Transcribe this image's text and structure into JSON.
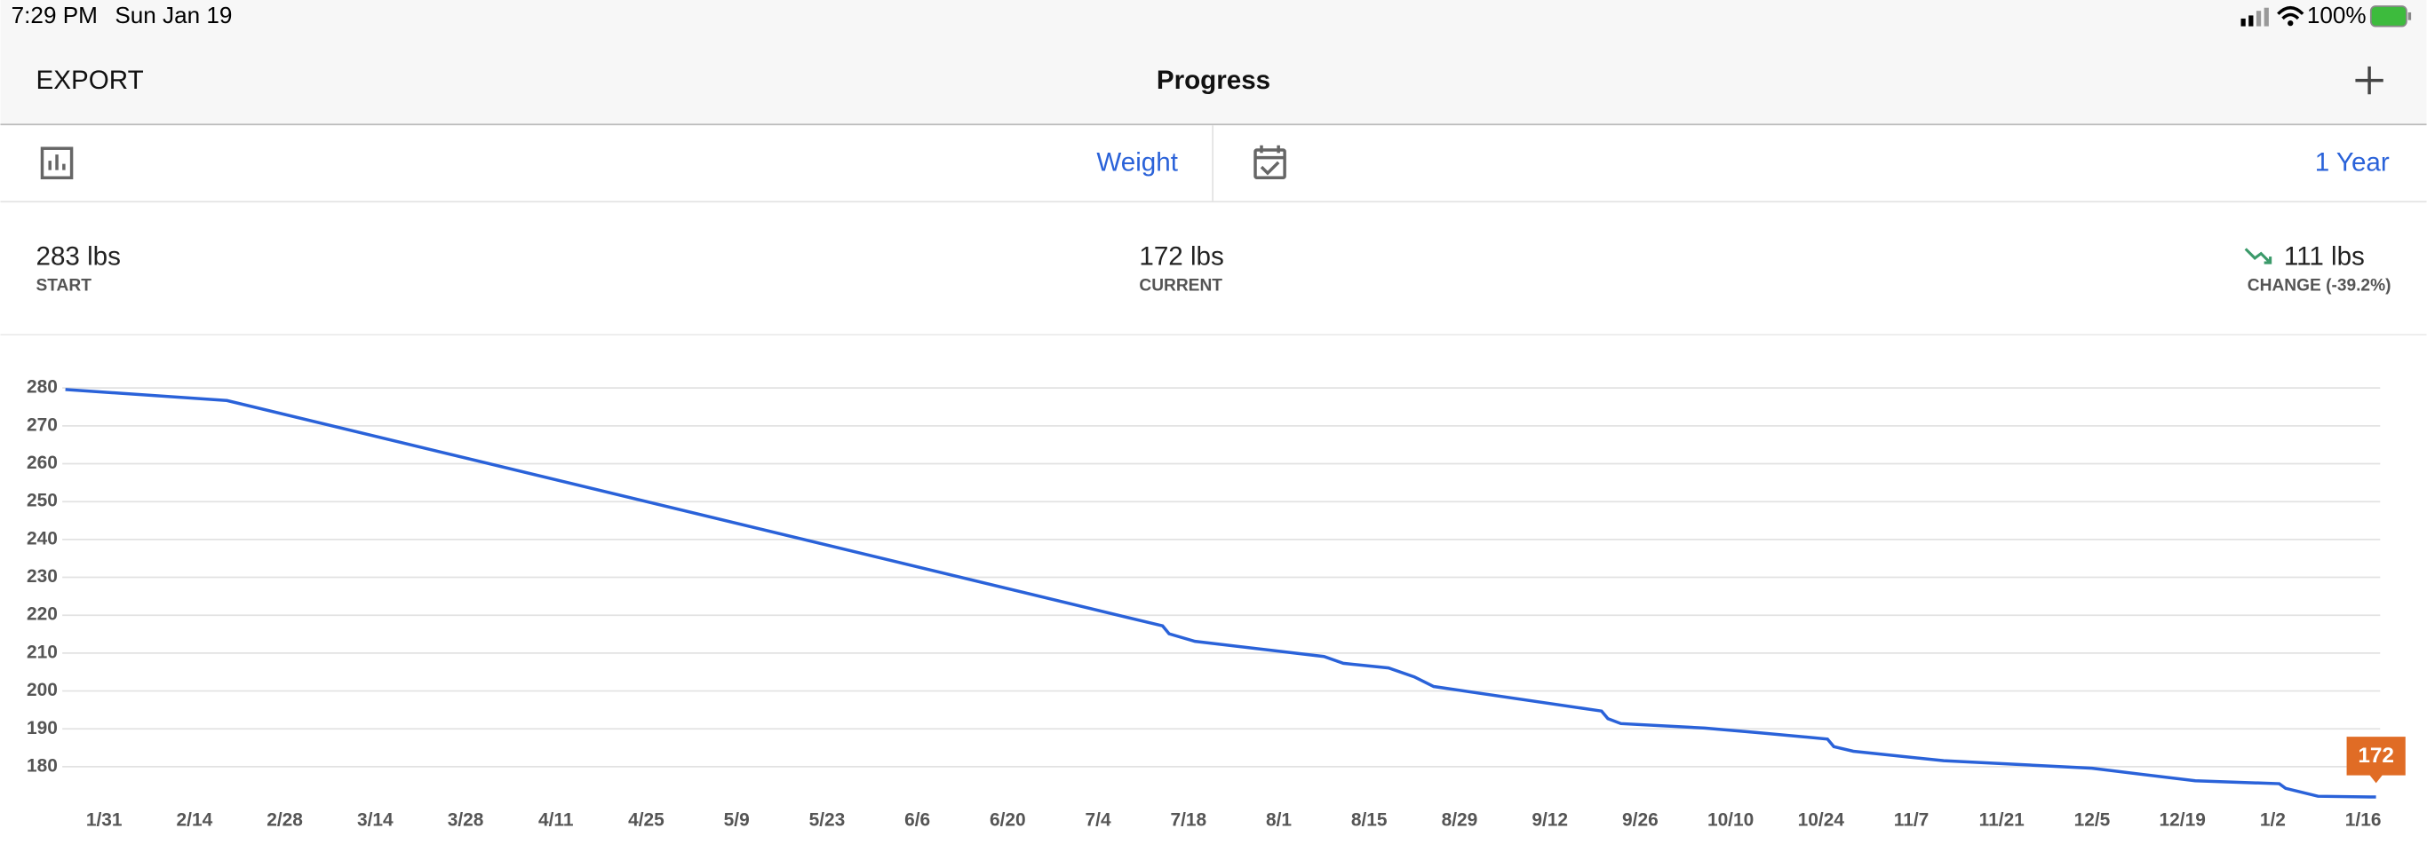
{
  "status_bar": {
    "time": "7:29 PM",
    "date": "Sun Jan 19",
    "battery": "100%"
  },
  "nav": {
    "left": "EXPORT",
    "title": "Progress"
  },
  "selectors": {
    "metric": "Weight",
    "range": "1 Year"
  },
  "stats": [
    {
      "value": "283 lbs",
      "label": "START"
    },
    {
      "value": "172 lbs",
      "label": "CURRENT"
    },
    {
      "value": "111 lbs",
      "label": "CHANGE (-39.2%)"
    }
  ],
  "chart": {
    "type": "line",
    "color": "#2a62d9",
    "tooltip_color": "#e06c25",
    "grid": true,
    "x": [
      "1/25",
      "2/19",
      "7/14",
      "7/15",
      "7/19",
      "8/8",
      "8/11",
      "8/18",
      "8/22",
      "8/25",
      "9/20",
      "9/21",
      "9/23",
      "10/6",
      "10/14",
      "10/25",
      "10/26",
      "10/29",
      "11/12",
      "12/5",
      "12/21",
      "1/3",
      "1/4",
      "1/9",
      "1/18"
    ],
    "values": [
      279.6,
      276.7,
      217.2,
      215.1,
      213.1,
      209.1,
      207.3,
      206.1,
      203.7,
      201.2,
      194.7,
      192.7,
      191.4,
      190.2,
      189,
      187.3,
      185.3,
      184.1,
      181.6,
      179.6,
      176.3,
      175.5,
      174.3,
      172.2,
      172
    ],
    "ylim": [
      170,
      280
    ],
    "yticks": [
      180,
      190,
      200,
      210,
      220,
      230,
      240,
      250,
      260,
      270,
      280
    ],
    "xticks": [
      "1/31",
      "2/14",
      "2/28",
      "3/14",
      "3/28",
      "4/11",
      "4/25",
      "5/9",
      "5/23",
      "6/6",
      "6/20",
      "7/4",
      "7/18",
      "8/1",
      "8/15",
      "8/29",
      "9/12",
      "9/26",
      "10/10",
      "10/24",
      "11/7",
      "11/21",
      "12/5",
      "12/19",
      "1/2",
      "1/16"
    ]
  }
}
